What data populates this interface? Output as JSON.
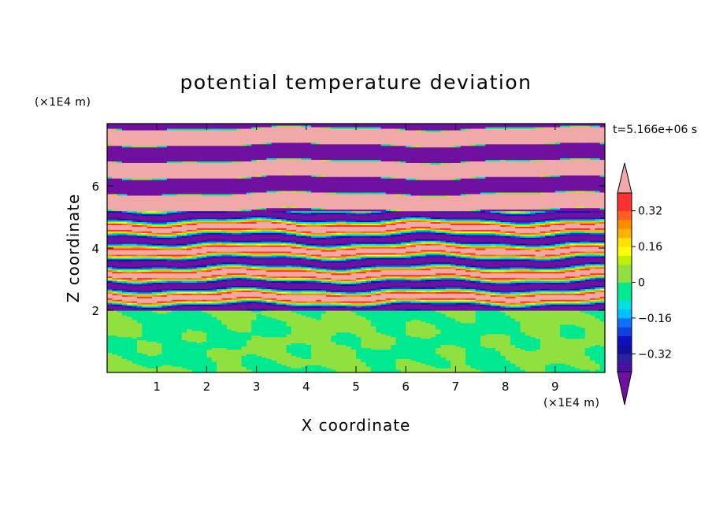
{
  "chart_data": {
    "type": "heatmap",
    "title": "potential temperature deviation",
    "xlabel": "X coordinate",
    "ylabel": "Z coordinate",
    "x_unit": "(×1E4 m)",
    "y_unit": "(×1E4 m)",
    "time_label": "t=5.166e+06 s",
    "xlim": [
      0,
      10
    ],
    "ylim": [
      0,
      8
    ],
    "x_ticks": [
      "1",
      "2",
      "3",
      "4",
      "5",
      "6",
      "7",
      "8",
      "9"
    ],
    "x_tick_values": [
      1,
      2,
      3,
      4,
      5,
      6,
      7,
      8,
      9
    ],
    "y_ticks": [
      "2",
      "4",
      "6"
    ],
    "y_tick_values": [
      2,
      4,
      6
    ],
    "colorbar": {
      "labels": [
        "0.32",
        "0.16",
        "0",
        "−0.16",
        "−0.32"
      ],
      "label_values": [
        0.32,
        0.16,
        0,
        -0.16,
        -0.32
      ],
      "levels": [
        -0.4,
        -0.36,
        -0.32,
        -0.28,
        -0.24,
        -0.2,
        -0.16,
        -0.12,
        -0.08,
        -0.04,
        0,
        0.04,
        0.08,
        0.12,
        0.16,
        0.2,
        0.24,
        0.28,
        0.32,
        0.36,
        0.4
      ],
      "colors": {
        "above_max": "#f0a8a8",
        "band_0.36_0.40": "#ff3030",
        "band_0.32_0.36": "#ff3030",
        "band_0.28_0.32": "#ff6020",
        "band_0.24_0.28": "#ff8c00",
        "band_0.20_0.24": "#ffb000",
        "band_0.16_0.20": "#ffe000",
        "band_0.12_0.16": "#ffff00",
        "band_0.08_0.12": "#c0f000",
        "band_0.04_0.08": "#90e040",
        "band_0.00_0.04": "#90e040",
        "band_-0.04_0.00": "#00e890",
        "band_-0.08_-0.04": "#00e890",
        "band_-0.12_-0.08": "#00e0e0",
        "band_-0.16_-0.12": "#00c0ff",
        "band_-0.20_-0.16": "#1070ff",
        "band_-0.24_-0.20": "#1040e0",
        "band_-0.28_-0.24": "#1010c0",
        "band_-0.32_-0.28": "#1010a0",
        "band_-0.36_-0.32": "#3020a0",
        "band_-0.40_-0.36": "#4a10a0",
        "below_min": "#7010a0"
      }
    },
    "field_description_regions": [
      {
        "z_range": [
          0,
          2
        ],
        "dominant_values": [
          0.02,
          -0.02
        ]
      },
      {
        "z_range": [
          2,
          5.2
        ],
        "dominant_values": [
          -0.4,
          0.4
        ]
      },
      {
        "z_range": [
          5.2,
          8
        ],
        "dominant_values": [
          -0.45,
          0.45
        ]
      }
    ]
  }
}
